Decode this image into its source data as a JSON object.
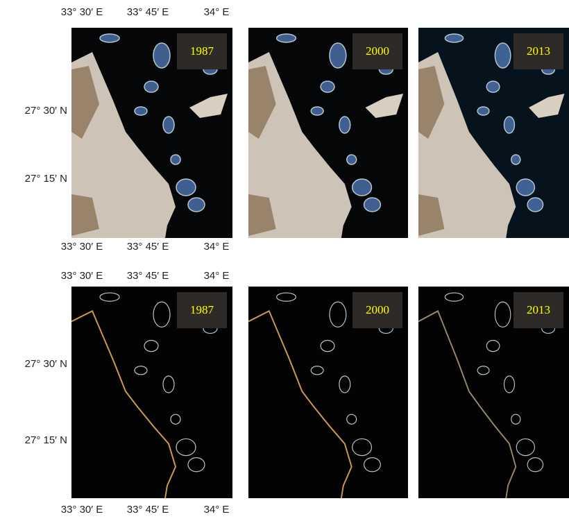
{
  "rows": [
    {
      "top_axis_labels": [
        "33° 30′ E",
        "33° 45′ E",
        "34° E"
      ],
      "left_axis_labels": [
        "27° 30′ N",
        "27° 15′ N"
      ],
      "bottom_axis_labels": [
        "33° 30′ E",
        "33° 45′ E",
        "34° E"
      ],
      "panels": [
        {
          "year": "1987"
        },
        {
          "year": "2000"
        },
        {
          "year": "2013"
        }
      ]
    },
    {
      "top_axis_labels": [
        "33° 30′ E",
        "33° 45′ E",
        "34° E"
      ],
      "left_axis_labels": [
        "27° 30′ N",
        "27° 15′ N"
      ],
      "bottom_axis_labels": [
        "33° 30′ E",
        "33° 45′ E",
        "34° E"
      ],
      "panels": [
        {
          "year": "1987"
        },
        {
          "year": "2000"
        },
        {
          "year": "2013"
        }
      ]
    }
  ]
}
